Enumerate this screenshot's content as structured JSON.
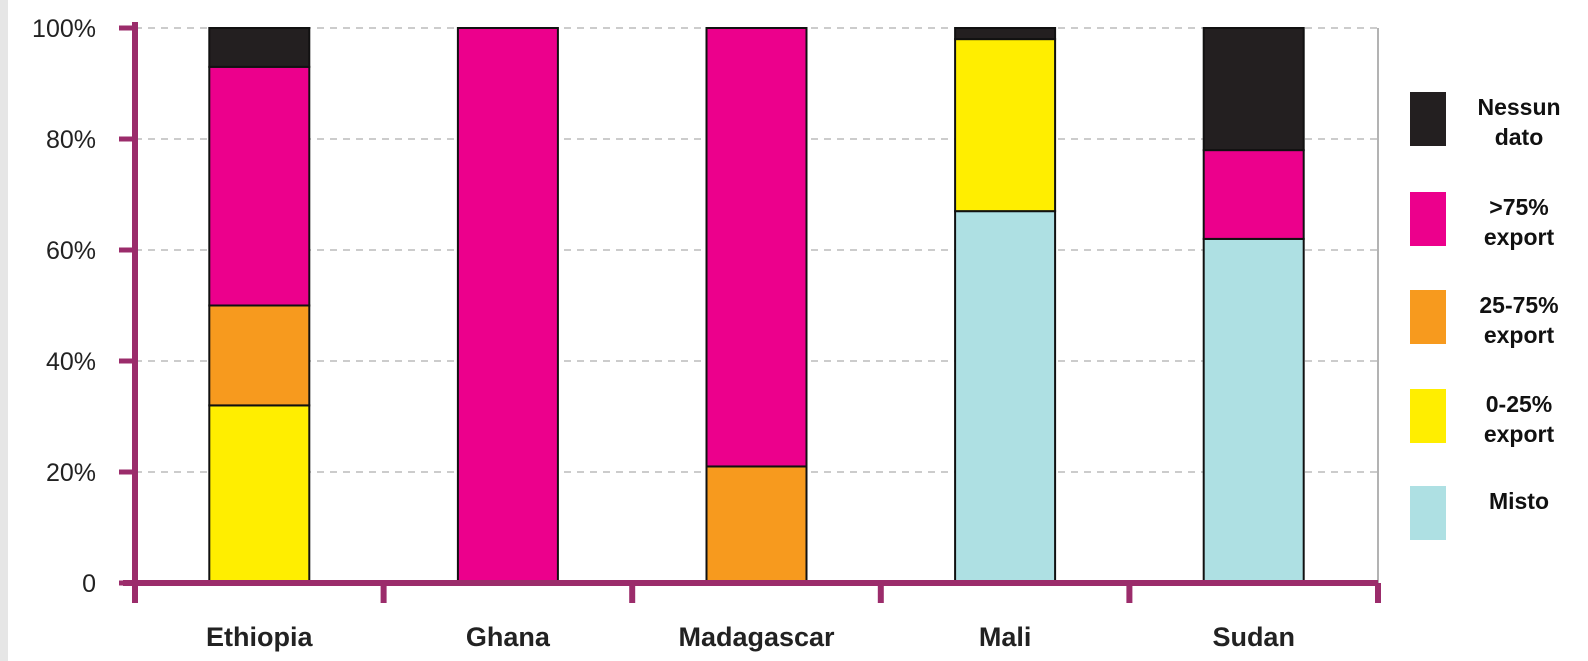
{
  "chart_data": {
    "type": "bar",
    "stacked": true,
    "categories": [
      "Ethiopia",
      "Ghana",
      "Madagascar",
      "Mali",
      "Sudan"
    ],
    "series": [
      {
        "name": "Misto",
        "color": "#aee0e3",
        "values": [
          0,
          0,
          0,
          67,
          62
        ]
      },
      {
        "name": "0-25% export",
        "color": "#ffee00",
        "values": [
          32,
          0,
          0,
          31,
          0
        ]
      },
      {
        "name": "25-75% export",
        "color": "#f79a1e",
        "values": [
          18,
          0,
          21,
          0,
          0
        ]
      },
      {
        "name": ">75% export",
        "color": "#ec008c",
        "values": [
          43,
          100,
          79,
          0,
          16
        ]
      },
      {
        "name": "Nessun dato",
        "color": "#231f20",
        "values": [
          7,
          0,
          0,
          2,
          22
        ]
      }
    ],
    "y_ticks": [
      "0",
      "20%",
      "40%",
      "60%",
      "80%",
      "100%"
    ],
    "ylim": [
      0,
      100
    ],
    "grid": true,
    "legend_position": "right",
    "axis_color": "#9b2c6b"
  },
  "legend": [
    {
      "label": "Nessun\n dato",
      "color": "#231f20"
    },
    {
      "label": ">75%\nexport",
      "color": "#ec008c"
    },
    {
      "label": "25-75%\nexport",
      "color": "#f79a1e"
    },
    {
      "label": "0-25%\nexport",
      "color": "#ffee00"
    },
    {
      "label": "Misto",
      "color": "#aee0e3"
    }
  ]
}
